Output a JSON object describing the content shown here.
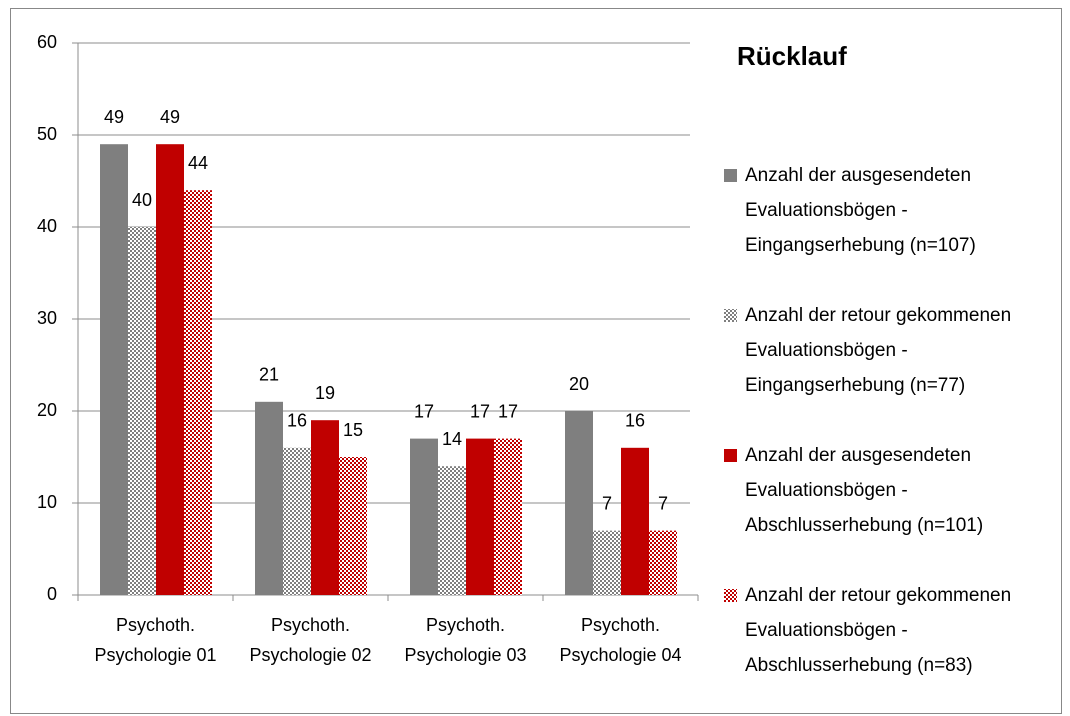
{
  "chart_data": {
    "type": "bar",
    "title": "Rücklauf",
    "categories": [
      "Psychoth. Psychologie 01",
      "Psychoth. Psychologie 02",
      "Psychoth. Psychologie 03",
      "Psychoth. Psychologie 04"
    ],
    "series": [
      {
        "name": "Anzahl der ausgesendeten Evaluationsbögen - Eingangserhebung (n=107)",
        "color": "#7f7f7f",
        "pattern": false,
        "values": [
          49,
          21,
          17,
          20
        ]
      },
      {
        "name": "Anzahl der retour gekommenen Evaluationsbögen - Eingangserhebung (n=77)",
        "color": "#7f7f7f",
        "pattern": true,
        "values": [
          40,
          16,
          14,
          7
        ]
      },
      {
        "name": "Anzahl der ausgesendeten Evaluationsbögen - Abschlusserhebung (n=101)",
        "color": "#c00000",
        "pattern": false,
        "values": [
          49,
          19,
          17,
          16
        ]
      },
      {
        "name": "Anzahl der retour gekommenen Evaluationsbögen - Abschlusserhebung (n=83)",
        "color": "#c00000",
        "pattern": true,
        "values": [
          44,
          15,
          17,
          7
        ]
      }
    ],
    "ylim": [
      0,
      60
    ],
    "yticks": [
      0,
      10,
      20,
      30,
      40,
      50,
      60
    ],
    "grid": true,
    "legend": "right"
  }
}
